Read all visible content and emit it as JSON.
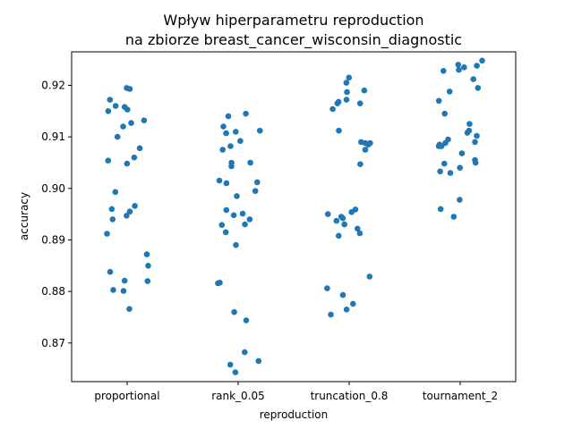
{
  "chart_data": {
    "type": "scatter",
    "title_lines": [
      "Wpływ hiperparametru reproduction",
      "na zbiorze breast_cancer_wisconsin_diagnostic"
    ],
    "xlabel": "reproduction",
    "ylabel": "accuracy",
    "categories": [
      "proportional",
      "rank_0.05",
      "truncation_0.8",
      "tournament_2"
    ],
    "ylim": [
      0.8625,
      0.9265
    ],
    "yticks": [
      0.87,
      0.88,
      0.89,
      0.9,
      0.91,
      0.92
    ],
    "ytick_labels": [
      "0.87",
      "0.88",
      "0.89",
      "0.90",
      "0.91",
      "0.92"
    ],
    "grid": false,
    "legend": "none",
    "point_color": "#1f77b4",
    "series": [
      {
        "category": "proportional",
        "values": [
          0.9195,
          0.9193,
          0.9172,
          0.916,
          0.9158,
          0.9153,
          0.915,
          0.9132,
          0.9127,
          0.912,
          0.91,
          0.9078,
          0.906,
          0.9054,
          0.9048,
          0.8993,
          0.8966,
          0.896,
          0.8955,
          0.8947,
          0.894,
          0.8912,
          0.8872,
          0.885,
          0.8838,
          0.8821,
          0.882,
          0.8803,
          0.8801,
          0.8766
        ]
      },
      {
        "category": "rank_0.05",
        "values": [
          0.9145,
          0.914,
          0.912,
          0.9112,
          0.911,
          0.9107,
          0.9092,
          0.9082,
          0.9075,
          0.905,
          0.905,
          0.9043,
          0.9015,
          0.9012,
          0.901,
          0.8995,
          0.8985,
          0.8958,
          0.8951,
          0.8948,
          0.894,
          0.893,
          0.8929,
          0.8915,
          0.889,
          0.8817,
          0.8816,
          0.876,
          0.8744,
          0.8682,
          0.8665,
          0.8658,
          0.8643
        ]
      },
      {
        "category": "truncation_0.8",
        "values": [
          0.9215,
          0.9205,
          0.919,
          0.9187,
          0.9172,
          0.9168,
          0.9165,
          0.9165,
          0.9154,
          0.9112,
          0.909,
          0.9088,
          0.9088,
          0.9085,
          0.9075,
          0.9047,
          0.8959,
          0.8954,
          0.895,
          0.8945,
          0.8942,
          0.8937,
          0.893,
          0.8922,
          0.8913,
          0.8908,
          0.8829,
          0.8806,
          0.8793,
          0.8776,
          0.8765,
          0.8755
        ]
      },
      {
        "category": "tournament_2",
        "values": [
          0.9248,
          0.924,
          0.9238,
          0.9235,
          0.923,
          0.9228,
          0.9212,
          0.9195,
          0.9188,
          0.917,
          0.9145,
          0.9125,
          0.9112,
          0.9108,
          0.9102,
          0.9095,
          0.909,
          0.9088,
          0.9085,
          0.9082,
          0.9082,
          0.9068,
          0.9055,
          0.905,
          0.9048,
          0.904,
          0.9033,
          0.903,
          0.8978,
          0.896,
          0.8945
        ]
      }
    ]
  }
}
